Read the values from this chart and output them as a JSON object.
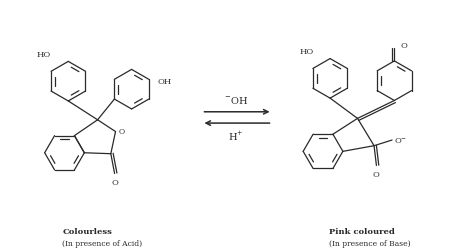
{
  "bg_color": "#ffffff",
  "line_color": "#2a2a2a",
  "figsize": [
    4.74,
    2.51
  ],
  "dpi": 100,
  "label_left_line1": "Colourless",
  "label_left_line2": "(In presence of Acid)",
  "label_right_line1": "Pink coloured",
  "label_right_line2": "(In presence of Base)",
  "arrow_top": "  OH",
  "arrow_top_super": "-",
  "arrow_bottom": "H",
  "arrow_bottom_super": "+"
}
